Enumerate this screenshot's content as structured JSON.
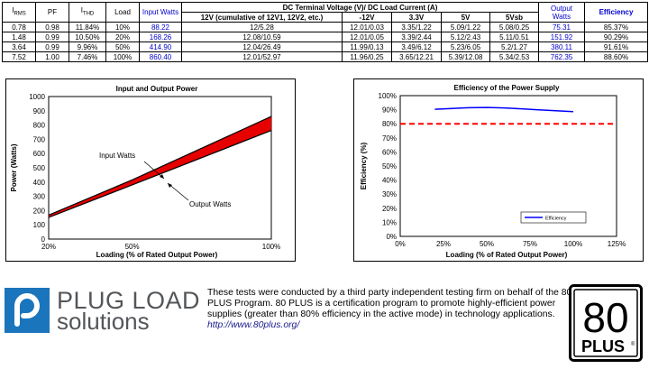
{
  "table": {
    "headers": {
      "irms_main": "I",
      "irms_sub": "RMS",
      "pf": "PF",
      "ithd_main": "I",
      "ithd_sub": "THD",
      "load": "Load",
      "input_watts": "Input Watts",
      "dc_group": "DC Terminal Voltage (V)/ DC Load Current (A)",
      "v12": "12V (cumulative of 12V1, 12V2, etc.)",
      "vneg12": "-12V",
      "v33": "3.3V",
      "v5": "5V",
      "v5sb": "5Vsb",
      "output_watts": "Output Watts",
      "efficiency": "Efficiency"
    },
    "rows": [
      {
        "irms": "0.78",
        "pf": "0.98",
        "ithd": "11.84%",
        "load": "10%",
        "input": "88.22",
        "v12": "12/5.28",
        "vneg12": "12.01/0.03",
        "v33": "3.35/1.22",
        "v5": "5.09/1.22",
        "v5sb": "5.08/0.25",
        "output": "75.31",
        "eff": "85.37%"
      },
      {
        "irms": "1.48",
        "pf": "0.99",
        "ithd": "10.50%",
        "load": "20%",
        "input": "168.26",
        "v12": "12.08/10.59",
        "vneg12": "12.01/0.05",
        "v33": "3.39/2.44",
        "v5": "5.12/2.43",
        "v5sb": "5.11/0.51",
        "output": "151.92",
        "eff": "90.29%"
      },
      {
        "irms": "3.64",
        "pf": "0.99",
        "ithd": "9.96%",
        "load": "50%",
        "input": "414.90",
        "v12": "12.04/26.49",
        "vneg12": "11.99/0.13",
        "v33": "3.49/6.12",
        "v5": "5.23/6.05",
        "v5sb": "5.2/1.27",
        "output": "380.11",
        "eff": "91.61%"
      },
      {
        "irms": "7.52",
        "pf": "1.00",
        "ithd": "7.46%",
        "load": "100%",
        "input": "860.40",
        "v12": "12.01/52.97",
        "vneg12": "11.96/0.25",
        "v33": "3.65/12.21",
        "v5": "5.39/12.08",
        "v5sb": "5.34/2.53",
        "output": "762.35",
        "eff": "88.60%"
      }
    ]
  },
  "chart_data": [
    {
      "type": "area",
      "title": "Input and Output Power",
      "xlabel": "Loading (% of Rated Output Power)",
      "ylabel": "Power (Watts)",
      "categories": [
        "20%",
        "50%",
        "100%"
      ],
      "x": [
        20,
        50,
        100
      ],
      "xlim": [
        20,
        100
      ],
      "ylim": [
        0,
        1000
      ],
      "yticks": [
        0,
        100,
        200,
        300,
        400,
        500,
        600,
        700,
        800,
        900,
        1000
      ],
      "series": [
        {
          "name": "Input Watts",
          "x": [
            20,
            50,
            100
          ],
          "values": [
            168.26,
            414.9,
            860.4
          ]
        },
        {
          "name": "Output Watts",
          "x": [
            20,
            50,
            100
          ],
          "values": [
            151.92,
            380.11,
            762.35
          ]
        }
      ],
      "annotations": [
        "Input Watts",
        "Output Watts"
      ],
      "fill_color": "#e60000",
      "background": "#ffffff"
    },
    {
      "type": "line",
      "title": "Efficiency of the Power Supply",
      "xlabel": "Loading (% of Rated Output Power)",
      "ylabel": "Efficiency (%)",
      "xlim": [
        0,
        125
      ],
      "xticks": [
        "0%",
        "25%",
        "50%",
        "75%",
        "100%",
        "125%"
      ],
      "ylim": [
        0,
        100
      ],
      "yticks": [
        "0%",
        "10%",
        "20%",
        "30%",
        "40%",
        "50%",
        "60%",
        "70%",
        "80%",
        "90%",
        "100%"
      ],
      "series": [
        {
          "name": "Efficiency",
          "x": [
            20,
            30,
            40,
            50,
            60,
            70,
            80,
            90,
            100
          ],
          "values": [
            90.29,
            90.9,
            91.4,
            91.61,
            91.3,
            90.6,
            89.9,
            89.3,
            88.6
          ],
          "color": "#0000ff"
        }
      ],
      "reference_line": {
        "value": 80,
        "color": "#ff0000",
        "style": "dashed"
      },
      "legend": "bottom-right",
      "background": "#ffffff"
    }
  ],
  "footer": {
    "logo_line1": "PLUG LOAD",
    "logo_line2": "solutions",
    "description": "These tests were conducted by a third party independent testing firm on behalf of the 80 PLUS Program. 80 PLUS is a certification program to promote highly-efficient power supplies (greater than 80% efficiency in the active mode) in technology applications.",
    "link": "http://www.80plus.org/",
    "badge_top": "80",
    "badge_bottom": "PLUS",
    "badge_reg": "®"
  },
  "colors": {
    "logo_gray": "#53565a",
    "link_blue": "#1a1a8c",
    "table_blue": "#0000cc"
  }
}
